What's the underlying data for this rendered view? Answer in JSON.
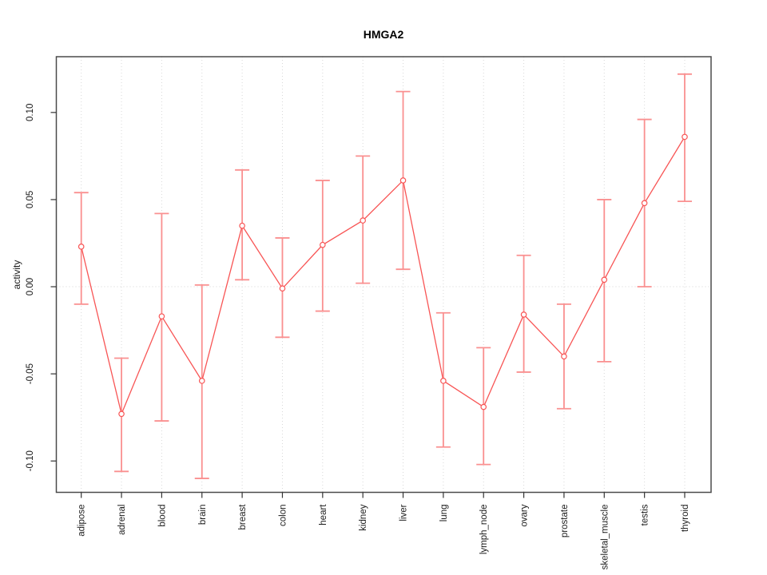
{
  "page": {
    "background": "#ffffff"
  },
  "chart_data": {
    "type": "line",
    "title": "HMGA2",
    "xlabel": "",
    "ylabel": "activity",
    "categories": [
      "adipose",
      "adrenal",
      "blood",
      "brain",
      "breast",
      "colon",
      "heart",
      "kidney",
      "liver",
      "lung",
      "lymph_node",
      "ovary",
      "prostate",
      "skeletal_muscle",
      "testis",
      "thyroid"
    ],
    "series": [
      {
        "name": "HMGA2 activity",
        "values": [
          0.023,
          -0.073,
          -0.017,
          -0.054,
          0.035,
          -0.001,
          0.024,
          0.038,
          0.061,
          -0.054,
          -0.069,
          -0.016,
          -0.04,
          0.004,
          0.048,
          0.086
        ],
        "error_low": [
          -0.01,
          -0.106,
          -0.077,
          -0.11,
          0.004,
          -0.029,
          -0.014,
          0.002,
          0.01,
          -0.092,
          -0.102,
          -0.049,
          -0.07,
          -0.043,
          0.0,
          0.049
        ],
        "error_high": [
          0.054,
          -0.041,
          0.042,
          0.001,
          0.067,
          0.028,
          0.061,
          0.075,
          0.112,
          -0.015,
          -0.035,
          0.018,
          -0.01,
          0.05,
          0.096,
          0.122
        ]
      }
    ],
    "yticks": [
      "0.10",
      "0.05",
      "0.00",
      "-0.05",
      "-0.10"
    ],
    "ytick_values": [
      0.1,
      0.05,
      0.0,
      -0.05,
      -0.1
    ],
    "ylim": [
      -0.118,
      0.132
    ],
    "grid": "dotted vertical gridline at each category, dotted horizontal line at zero",
    "legend": "none",
    "colors": {
      "line": "#f85555",
      "marker": "#f85555",
      "error_bar": "#fa9090",
      "grid": "#d8d8d8",
      "zero_line": "#d4d4d4",
      "box": "#4a4a4a",
      "tick": "#333333",
      "text": "#1a1a1a"
    }
  }
}
